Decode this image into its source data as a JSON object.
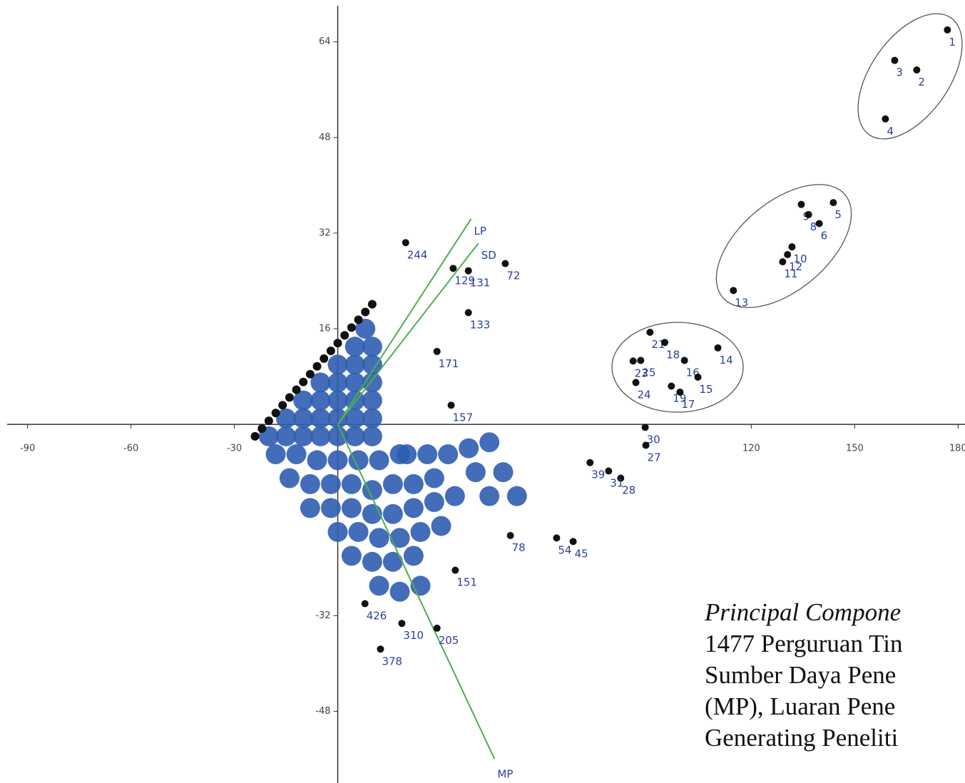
{
  "chart_data": {
    "type": "scatter",
    "xlim": [
      -98,
      182
    ],
    "ylim": [
      -60,
      71
    ],
    "xticks": [
      -90,
      -60,
      -30,
      120,
      150,
      180
    ],
    "yticks": [
      64,
      48,
      32,
      16,
      -32,
      -48
    ],
    "point_color": "#111111",
    "label_color": "#2b3f9c",
    "cluster_color": "#2f5db0",
    "vector_color": "#4caf50",
    "points": [
      {
        "label": "1",
        "x": 176.9,
        "y": 66.0
      },
      {
        "label": "3",
        "x": 161.6,
        "y": 60.9
      },
      {
        "label": "2",
        "x": 168.0,
        "y": 59.3
      },
      {
        "label": "4",
        "x": 158.9,
        "y": 51.1
      },
      {
        "label": "5",
        "x": 143.8,
        "y": 37.1
      },
      {
        "label": "9",
        "x": 134.5,
        "y": 36.8
      },
      {
        "label": "8",
        "x": 136.6,
        "y": 35.1
      },
      {
        "label": "6",
        "x": 139.7,
        "y": 33.6
      },
      {
        "label": "10",
        "x": 131.8,
        "y": 29.7
      },
      {
        "label": "12",
        "x": 130.5,
        "y": 28.4
      },
      {
        "label": "11",
        "x": 129.1,
        "y": 27.2
      },
      {
        "label": "13",
        "x": 114.8,
        "y": 22.4
      },
      {
        "label": "21",
        "x": 90.6,
        "y": 15.4
      },
      {
        "label": "18",
        "x": 94.9,
        "y": 13.7
      },
      {
        "label": "14",
        "x": 110.3,
        "y": 12.8
      },
      {
        "label": "16",
        "x": 100.6,
        "y": 10.7
      },
      {
        "label": "15",
        "x": 104.5,
        "y": 7.9
      },
      {
        "label": "23",
        "x": 85.7,
        "y": 10.6
      },
      {
        "label": "25",
        "x": 87.9,
        "y": 10.7
      },
      {
        "label": "24",
        "x": 86.5,
        "y": 7.0
      },
      {
        "label": "19",
        "x": 96.8,
        "y": 6.4
      },
      {
        "label": "17",
        "x": 99.3,
        "y": 5.4
      },
      {
        "label": "72",
        "x": 48.6,
        "y": 26.9
      },
      {
        "label": "244",
        "x": 19.7,
        "y": 30.4
      },
      {
        "label": "133",
        "x": 37.9,
        "y": 18.7
      },
      {
        "label": "171",
        "x": 28.8,
        "y": 12.2
      },
      {
        "label": "129",
        "x": 33.5,
        "y": 26.1
      },
      {
        "label": "131",
        "x": 37.9,
        "y": 25.7
      },
      {
        "label": "157",
        "x": 32.9,
        "y": 3.2
      },
      {
        "label": "151",
        "x": 34.1,
        "y": -24.4
      },
      {
        "label": "78",
        "x": 50.1,
        "y": -18.6
      },
      {
        "label": "45",
        "x": 68.3,
        "y": -19.6
      },
      {
        "label": "54",
        "x": 63.5,
        "y": -19.0
      },
      {
        "label": "28",
        "x": 82.1,
        "y": -9.0
      },
      {
        "label": "31",
        "x": 78.6,
        "y": -7.8
      },
      {
        "label": "39",
        "x": 73.2,
        "y": -6.4
      },
      {
        "label": "27",
        "x": 89.4,
        "y": -3.5
      },
      {
        "label": "30",
        "x": 89.2,
        "y": -0.5
      },
      {
        "label": "205",
        "x": 28.8,
        "y": -34.1
      },
      {
        "label": "310",
        "x": 18.6,
        "y": -33.3
      },
      {
        "label": "426",
        "x": 7.9,
        "y": -30.0
      },
      {
        "label": "378",
        "x": 12.4,
        "y": -37.6
      }
    ],
    "edge": {
      "x": [
        -24,
        -22,
        -20,
        -18,
        -16,
        -14,
        -12,
        -10,
        -8,
        -6,
        -4,
        -2,
        0,
        2,
        4,
        6,
        8,
        10
      ],
      "y": [
        -2,
        -0.7,
        0.6,
        1.9,
        3.2,
        4.5,
        5.8,
        7.1,
        8.4,
        9.7,
        11,
        12.3,
        13.6,
        14.9,
        16.2,
        17.5,
        18.8,
        20.1
      ]
    },
    "cluster": {
      "x": [
        -20,
        -15,
        -10,
        -5,
        0,
        5,
        10,
        -15,
        -10,
        -5,
        0,
        5,
        10,
        -10,
        -5,
        0,
        5,
        10,
        -5,
        0,
        5,
        10,
        0,
        5,
        10,
        5,
        10,
        8,
        -18,
        -12,
        -6,
        0,
        6,
        12,
        18,
        -14,
        -8,
        -2,
        4,
        10,
        16,
        22,
        28,
        -8,
        -2,
        4,
        10,
        16,
        22,
        28,
        34,
        0,
        6,
        12,
        18,
        24,
        30,
        4,
        10,
        16,
        22,
        12,
        18,
        24,
        20,
        26,
        32,
        38,
        44,
        40,
        48,
        44,
        52
      ],
      "y": [
        -2,
        -2,
        -2,
        -2,
        -2,
        -2,
        -2,
        1,
        1,
        1,
        1,
        1,
        1,
        4,
        4,
        4,
        4,
        4,
        7,
        7,
        7,
        7,
        10,
        10,
        10,
        13,
        13,
        16,
        -5,
        -5,
        -6,
        -6,
        -6,
        -6,
        -5,
        -9,
        -10,
        -10,
        -10,
        -11,
        -10,
        -10,
        -9,
        -14,
        -14,
        -14,
        -15,
        -15,
        -14,
        -13,
        -12,
        -18,
        -18,
        -19,
        -19,
        -18,
        -17,
        -22,
        -23,
        -23,
        -22,
        -27,
        -28,
        -27,
        -5,
        -5,
        -5,
        -4,
        -3,
        -8,
        -8,
        -12,
        -12
      ]
    },
    "vectors": [
      {
        "label": "LP",
        "x": 38.7,
        "y": 34.4
      },
      {
        "label": "SD",
        "x": 40.8,
        "y": 30.3
      },
      {
        "label": "MP",
        "x": 45.5,
        "y": -56.0
      }
    ]
  },
  "caption": [
    "Principal Compone",
    "1477 Perguruan Tin",
    "Sumber Daya Pene",
    "(MP), Luaran Pene",
    "Generating Peneliti"
  ]
}
